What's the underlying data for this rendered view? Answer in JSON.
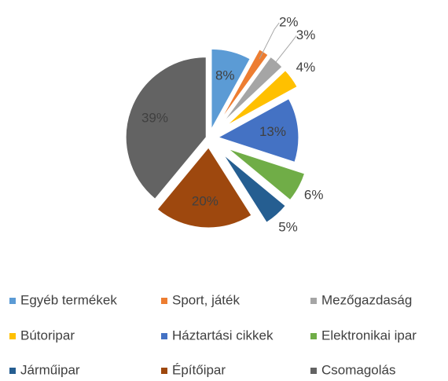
{
  "chart_data": {
    "type": "pie",
    "categories": [
      "Egyéb termékek",
      "Sport, játék",
      "Mezőgazdaság",
      "Bútoripar",
      "Háztartási cikkek",
      "Elektronikai ipar",
      "Járműipar",
      "Építőipar",
      "Csomagolás"
    ],
    "values": [
      8,
      2,
      3,
      4,
      13,
      6,
      5,
      20,
      39
    ],
    "value_labels": [
      "8%",
      "2%",
      "3%",
      "4%",
      "13%",
      "6%",
      "5%",
      "20%",
      "39%"
    ],
    "colors": [
      "#5b9bd5",
      "#ed7d31",
      "#a5a5a5",
      "#ffc000",
      "#4472c4",
      "#70ad47",
      "#255e91",
      "#9e480e",
      "#636363"
    ],
    "legend": "bottom"
  }
}
